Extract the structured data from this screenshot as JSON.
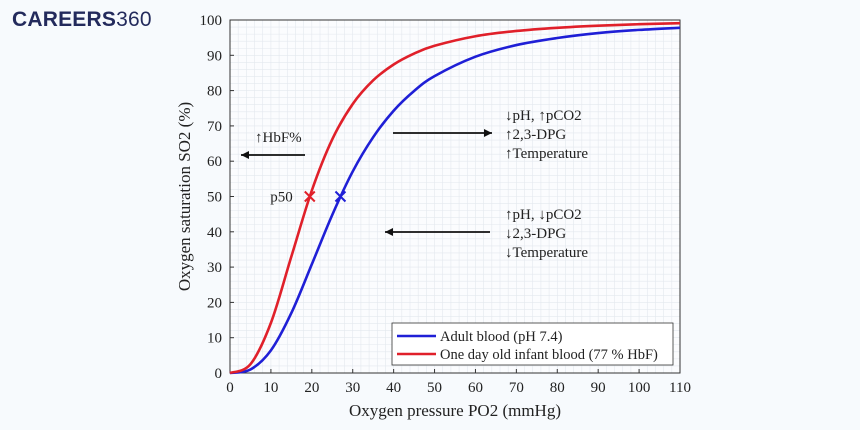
{
  "logo": {
    "bold": "CAREERS",
    "light": "360"
  },
  "chart_data": {
    "type": "line",
    "title": "",
    "xlabel": "Oxygen pressure PO2 (mmHg)",
    "ylabel": "Oxygen saturation SO2 (%)",
    "xlim": [
      0,
      110
    ],
    "ylim": [
      0,
      100
    ],
    "xticks": [
      0,
      10,
      20,
      30,
      40,
      50,
      60,
      70,
      80,
      90,
      100,
      110
    ],
    "yticks": [
      0,
      10,
      20,
      30,
      40,
      50,
      60,
      70,
      80,
      90,
      100
    ],
    "grid": true,
    "legend_position": "bottom-right",
    "x": [
      0,
      5,
      10,
      15,
      20,
      25,
      30,
      35,
      40,
      45,
      50,
      60,
      70,
      80,
      90,
      100,
      110
    ],
    "series": [
      {
        "name": "Adult blood (pH 7.4)",
        "color": "#1f1fd6",
        "values": [
          0,
          1.0,
          6.4,
          17.0,
          30.8,
          44.8,
          57.1,
          66.8,
          74.3,
          79.9,
          84.1,
          89.6,
          92.9,
          94.9,
          96.3,
          97.2,
          97.8
        ]
      },
      {
        "name": "One day old infant blood (77 % HbF)",
        "color": "#e0202a",
        "values": [
          0,
          2.5,
          14.2,
          33.0,
          51.7,
          66.2,
          76.2,
          82.9,
          87.4,
          90.5,
          92.7,
          95.4,
          96.9,
          97.8,
          98.4,
          98.8,
          99.1
        ]
      }
    ],
    "markers": [
      {
        "label": "p50",
        "x": 19.5,
        "y": 50,
        "color": "#e0202a"
      },
      {
        "x": 27,
        "y": 50,
        "color": "#1f1fd6"
      }
    ],
    "annotations": {
      "left": "↑HbF%",
      "right_upper": [
        "↓pH, ↑pCO2",
        "↑2,3-DPG",
        "↑Temperature"
      ],
      "right_lower": [
        "↑pH, ↓pCO2",
        "↓2,3-DPG",
        "↓Temperature"
      ]
    }
  }
}
